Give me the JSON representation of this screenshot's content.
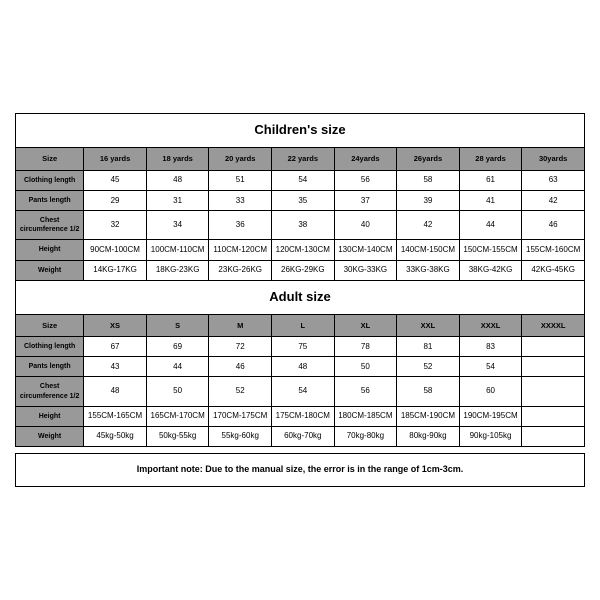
{
  "children": {
    "title": "Children's size",
    "header": [
      "Size",
      "16 yards",
      "18 yards",
      "20 yards",
      "22 yards",
      "24yards",
      "26yards",
      "28 yards",
      "30yards"
    ],
    "rows": [
      {
        "label": "Clothing length",
        "cells": [
          "45",
          "48",
          "51",
          "54",
          "56",
          "58",
          "61",
          "63"
        ]
      },
      {
        "label": "Pants length",
        "cells": [
          "29",
          "31",
          "33",
          "35",
          "37",
          "39",
          "41",
          "42"
        ]
      },
      {
        "label": "Chest circumference 1/2",
        "cells": [
          "32",
          "34",
          "36",
          "38",
          "40",
          "42",
          "44",
          "46"
        ]
      },
      {
        "label": "Height",
        "cells": [
          "90CM-100CM",
          "100CM-110CM",
          "110CM-120CM",
          "120CM-130CM",
          "130CM-140CM",
          "140CM-150CM",
          "150CM-155CM",
          "155CM-160CM"
        ]
      },
      {
        "label": "Weight",
        "cells": [
          "14KG-17KG",
          "18KG-23KG",
          "23KG-26KG",
          "26KG-29KG",
          "30KG-33KG",
          "33KG-38KG",
          "38KG-42KG",
          "42KG-45KG"
        ]
      }
    ]
  },
  "adult": {
    "title": "Adult size",
    "header": [
      "Size",
      "XS",
      "S",
      "M",
      "L",
      "XL",
      "XXL",
      "XXXL",
      "XXXXL"
    ],
    "rows": [
      {
        "label": "Clothing length",
        "cells": [
          "67",
          "69",
          "72",
          "75",
          "78",
          "81",
          "83",
          ""
        ]
      },
      {
        "label": "Pants length",
        "cells": [
          "43",
          "44",
          "46",
          "48",
          "50",
          "52",
          "54",
          ""
        ]
      },
      {
        "label": "Chest circumference 1/2",
        "cells": [
          "48",
          "50",
          "52",
          "54",
          "56",
          "58",
          "60",
          ""
        ]
      },
      {
        "label": "Height",
        "cells": [
          "155CM-165CM",
          "165CM-170CM",
          "170CM-175CM",
          "175CM-180CM",
          "180CM-185CM",
          "185CM-190CM",
          "190CM-195CM",
          ""
        ]
      },
      {
        "label": "Weight",
        "cells": [
          "45kg-50kg",
          "50kg-55kg",
          "55kg-60kg",
          "60kg-70kg",
          "70kg-80kg",
          "80kg-90kg",
          "90kg-105kg",
          ""
        ]
      }
    ]
  },
  "note": "Important note: Due to the manual size, the error is in the range of 1cm-3cm.",
  "style": {
    "border_color": "#000000",
    "header_bg": "#999999",
    "data_bg": "#ffffff",
    "title_fontsize": 13,
    "header_fontsize": 7.5,
    "label_fontsize": 7,
    "data_fontsize": 8,
    "note_fontsize": 9
  }
}
